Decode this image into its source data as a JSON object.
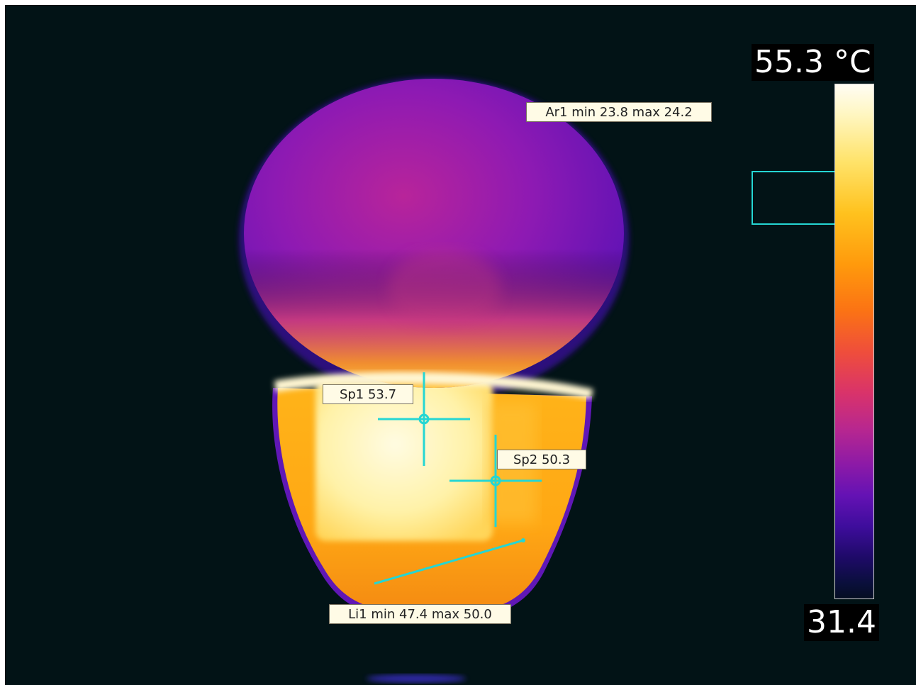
{
  "measurements": {
    "area": {
      "label": "Ar1 min 23.8 max 24.2",
      "min": 23.8,
      "max": 24.2
    },
    "spot1": {
      "label": "Sp1 53.7",
      "value": 53.7
    },
    "spot2": {
      "label": "Sp2 50.3",
      "value": 50.3
    },
    "line": {
      "label": "Li1 min 47.4 max 50.0",
      "min": 47.4,
      "max": 50.0
    }
  },
  "scale": {
    "max_label": "55.3 °C",
    "min_label": "31.4",
    "palette": "ironbow"
  },
  "colors": {
    "background": "#021316",
    "marker": "#25d6d3",
    "tag_background": "#fffbe6"
  }
}
